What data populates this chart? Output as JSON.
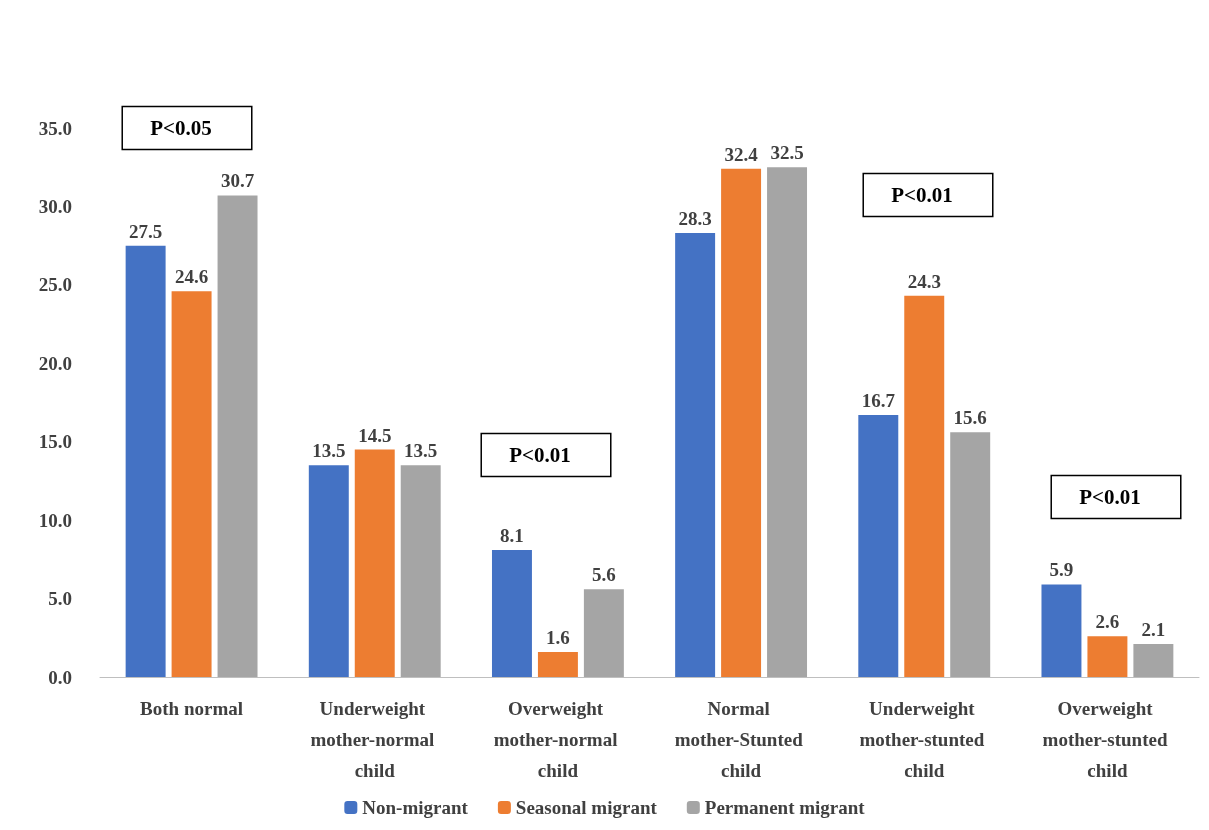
{
  "chart_data": {
    "type": "bar",
    "categories": [
      "Both normal",
      "Underweight mother-normal child",
      "Overweight mother-normal child",
      "Normal mother-Stunted child",
      "Underweight mother-stunted child",
      "Overweight mother-stunted child"
    ],
    "series": [
      {
        "name": "Non-migrant",
        "color": "#4472c4",
        "values": [
          27.5,
          13.5,
          8.1,
          28.3,
          16.7,
          5.9
        ]
      },
      {
        "name": "Seasonal migrant",
        "color": "#ed7d31",
        "values": [
          24.6,
          14.5,
          1.6,
          32.4,
          24.3,
          2.6
        ]
      },
      {
        "name": "Permanent migrant",
        "color": "#a5a5a5",
        "values": [
          30.7,
          13.5,
          5.6,
          32.5,
          15.6,
          2.1
        ]
      }
    ],
    "ylim": [
      0,
      35
    ],
    "yticks": [
      {
        "value": 0,
        "label": "0.0"
      },
      {
        "value": 5,
        "label": "5.0"
      },
      {
        "value": 10,
        "label": "10.0"
      },
      {
        "value": 15,
        "label": "15.0"
      },
      {
        "value": 20,
        "label": "20.0"
      },
      {
        "value": 25,
        "label": "25.0"
      },
      {
        "value": 30,
        "label": "30.0"
      },
      {
        "value": 35,
        "label": "35.0"
      }
    ],
    "annotations": [
      "P<0.05",
      "P<0.01",
      "P<0.01",
      "P<0.01"
    ],
    "data_labels": true,
    "grid": false,
    "legend": "bottom"
  }
}
